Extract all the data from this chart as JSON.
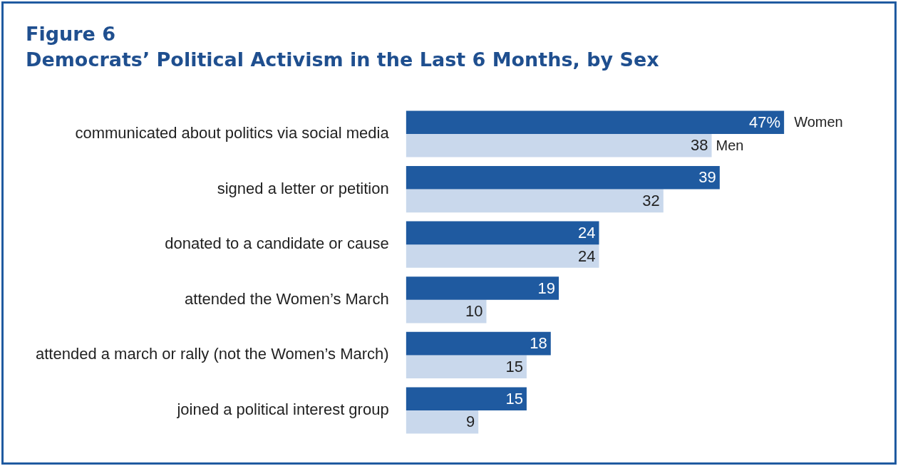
{
  "chart_data": {
    "type": "bar",
    "orientation": "horizontal",
    "title": "Figure 6",
    "subtitle": "Democrats’ Political Activism in the Last 6 Months, by Sex",
    "categories": [
      "communicated about politics via social media",
      "signed a letter or petition",
      "donated to a candidate or cause",
      "attended the Women’s March",
      "attended a march or rally (not the Women’s March)",
      "joined a political interest group"
    ],
    "series": [
      {
        "name": "Women",
        "color": "#1f5aa0",
        "values": [
          47,
          39,
          24,
          19,
          18,
          15
        ],
        "value_labels": [
          "47%",
          "39",
          "24",
          "19",
          "18",
          "15"
        ]
      },
      {
        "name": "Men",
        "color": "#c9d8ec",
        "values": [
          38,
          32,
          24,
          10,
          15,
          9
        ],
        "value_labels": [
          "38",
          "32",
          "24",
          "10",
          "15",
          "9"
        ]
      }
    ],
    "legend": "right"
  }
}
